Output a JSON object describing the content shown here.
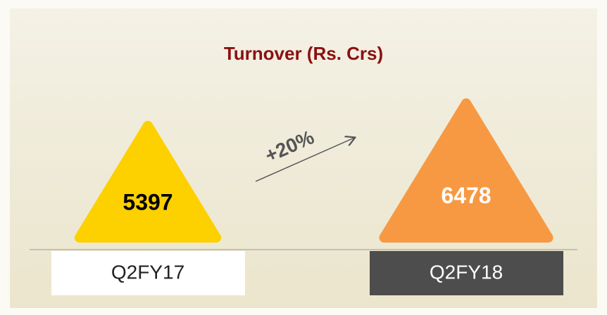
{
  "chart_data": {
    "type": "triangle",
    "title": "Turnover (Rs. Crs)",
    "categories": [
      "Q2FY17",
      "Q2FY18"
    ],
    "values": [
      5397,
      6478
    ],
    "colors": [
      "#fdd000",
      "#f79943"
    ],
    "label_colors": [
      "#000000",
      "#ffffff"
    ],
    "category_box_colors": [
      "#ffffff",
      "#4d4d4d"
    ],
    "category_text_colors": [
      "#222222",
      "#ffffff"
    ],
    "annotation": "+20%"
  }
}
